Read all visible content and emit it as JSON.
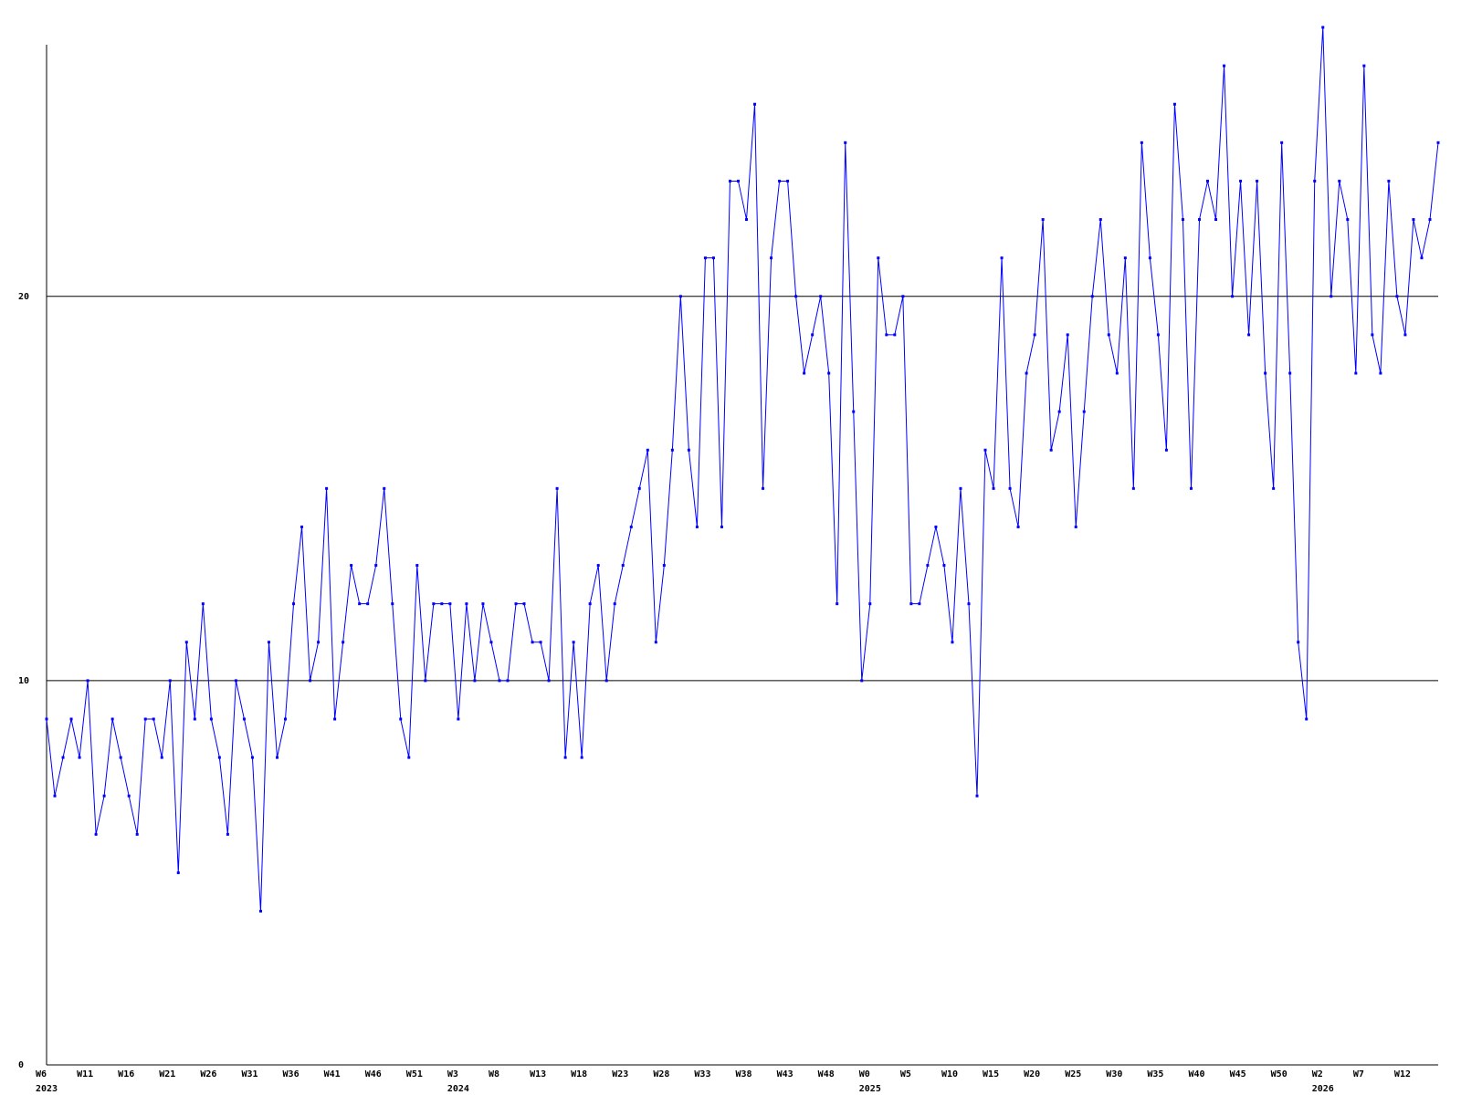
{
  "chart_data": {
    "type": "line",
    "title": "",
    "xlabel": "",
    "ylabel": "",
    "ylim": [
      0,
      27
    ],
    "y_ticks": [
      "0",
      "10",
      "20"
    ],
    "grid": "horizontal lines at 10 and 20",
    "x_tick_labels": [
      "W6",
      "W11",
      "W16",
      "W21",
      "W26",
      "W31",
      "W36",
      "W41",
      "W46",
      "W51",
      "W3",
      "W8",
      "W13",
      "W18",
      "W23",
      "W28",
      "W33",
      "W38",
      "W43",
      "W48",
      "W0",
      "W5",
      "W10",
      "W15",
      "W20",
      "W25",
      "W30",
      "W35",
      "W40",
      "W45",
      "W50",
      "W2",
      "W7",
      "W12"
    ],
    "year_labels": [
      "2023",
      "2024",
      "2025",
      "2026"
    ],
    "series": [
      {
        "values": [
          9,
          7,
          8,
          9,
          8,
          10,
          6,
          7,
          9,
          8,
          7,
          6,
          9,
          9,
          8,
          10,
          5,
          11,
          9,
          12,
          9,
          8,
          6,
          10,
          9,
          8,
          4,
          11,
          8,
          9,
          12,
          14,
          10,
          11,
          15,
          9,
          11,
          13,
          12,
          12,
          13,
          15,
          12,
          9,
          8,
          13,
          10,
          12,
          12,
          12,
          9,
          12,
          10,
          12,
          11,
          10,
          10,
          12,
          12,
          11,
          11,
          10,
          15,
          8,
          11,
          8,
          12,
          13,
          10,
          12,
          13,
          14,
          15,
          16,
          11,
          13,
          16,
          20,
          16,
          14,
          21,
          21,
          14,
          23,
          23,
          22,
          25,
          15,
          21,
          23,
          23,
          20,
          18,
          19,
          20,
          18,
          12,
          24,
          17,
          10,
          12,
          21,
          19,
          19,
          20,
          12,
          12,
          13,
          14,
          13,
          11,
          15,
          12,
          7,
          16,
          15,
          21,
          15,
          14,
          18,
          19,
          22,
          16,
          17,
          19,
          14,
          17,
          20,
          22,
          19,
          18,
          21,
          15,
          24,
          21,
          19,
          16,
          25,
          22,
          15,
          22,
          23,
          22,
          26,
          20,
          23,
          19,
          23,
          18,
          15,
          24,
          18,
          11,
          9,
          23,
          27,
          20,
          23,
          22,
          18,
          26,
          19,
          18,
          23,
          20,
          19,
          22,
          21,
          22,
          24
        ]
      }
    ],
    "colors": {
      "line": "#0000ff",
      "axis": "#000000",
      "grid": "#000000"
    }
  }
}
